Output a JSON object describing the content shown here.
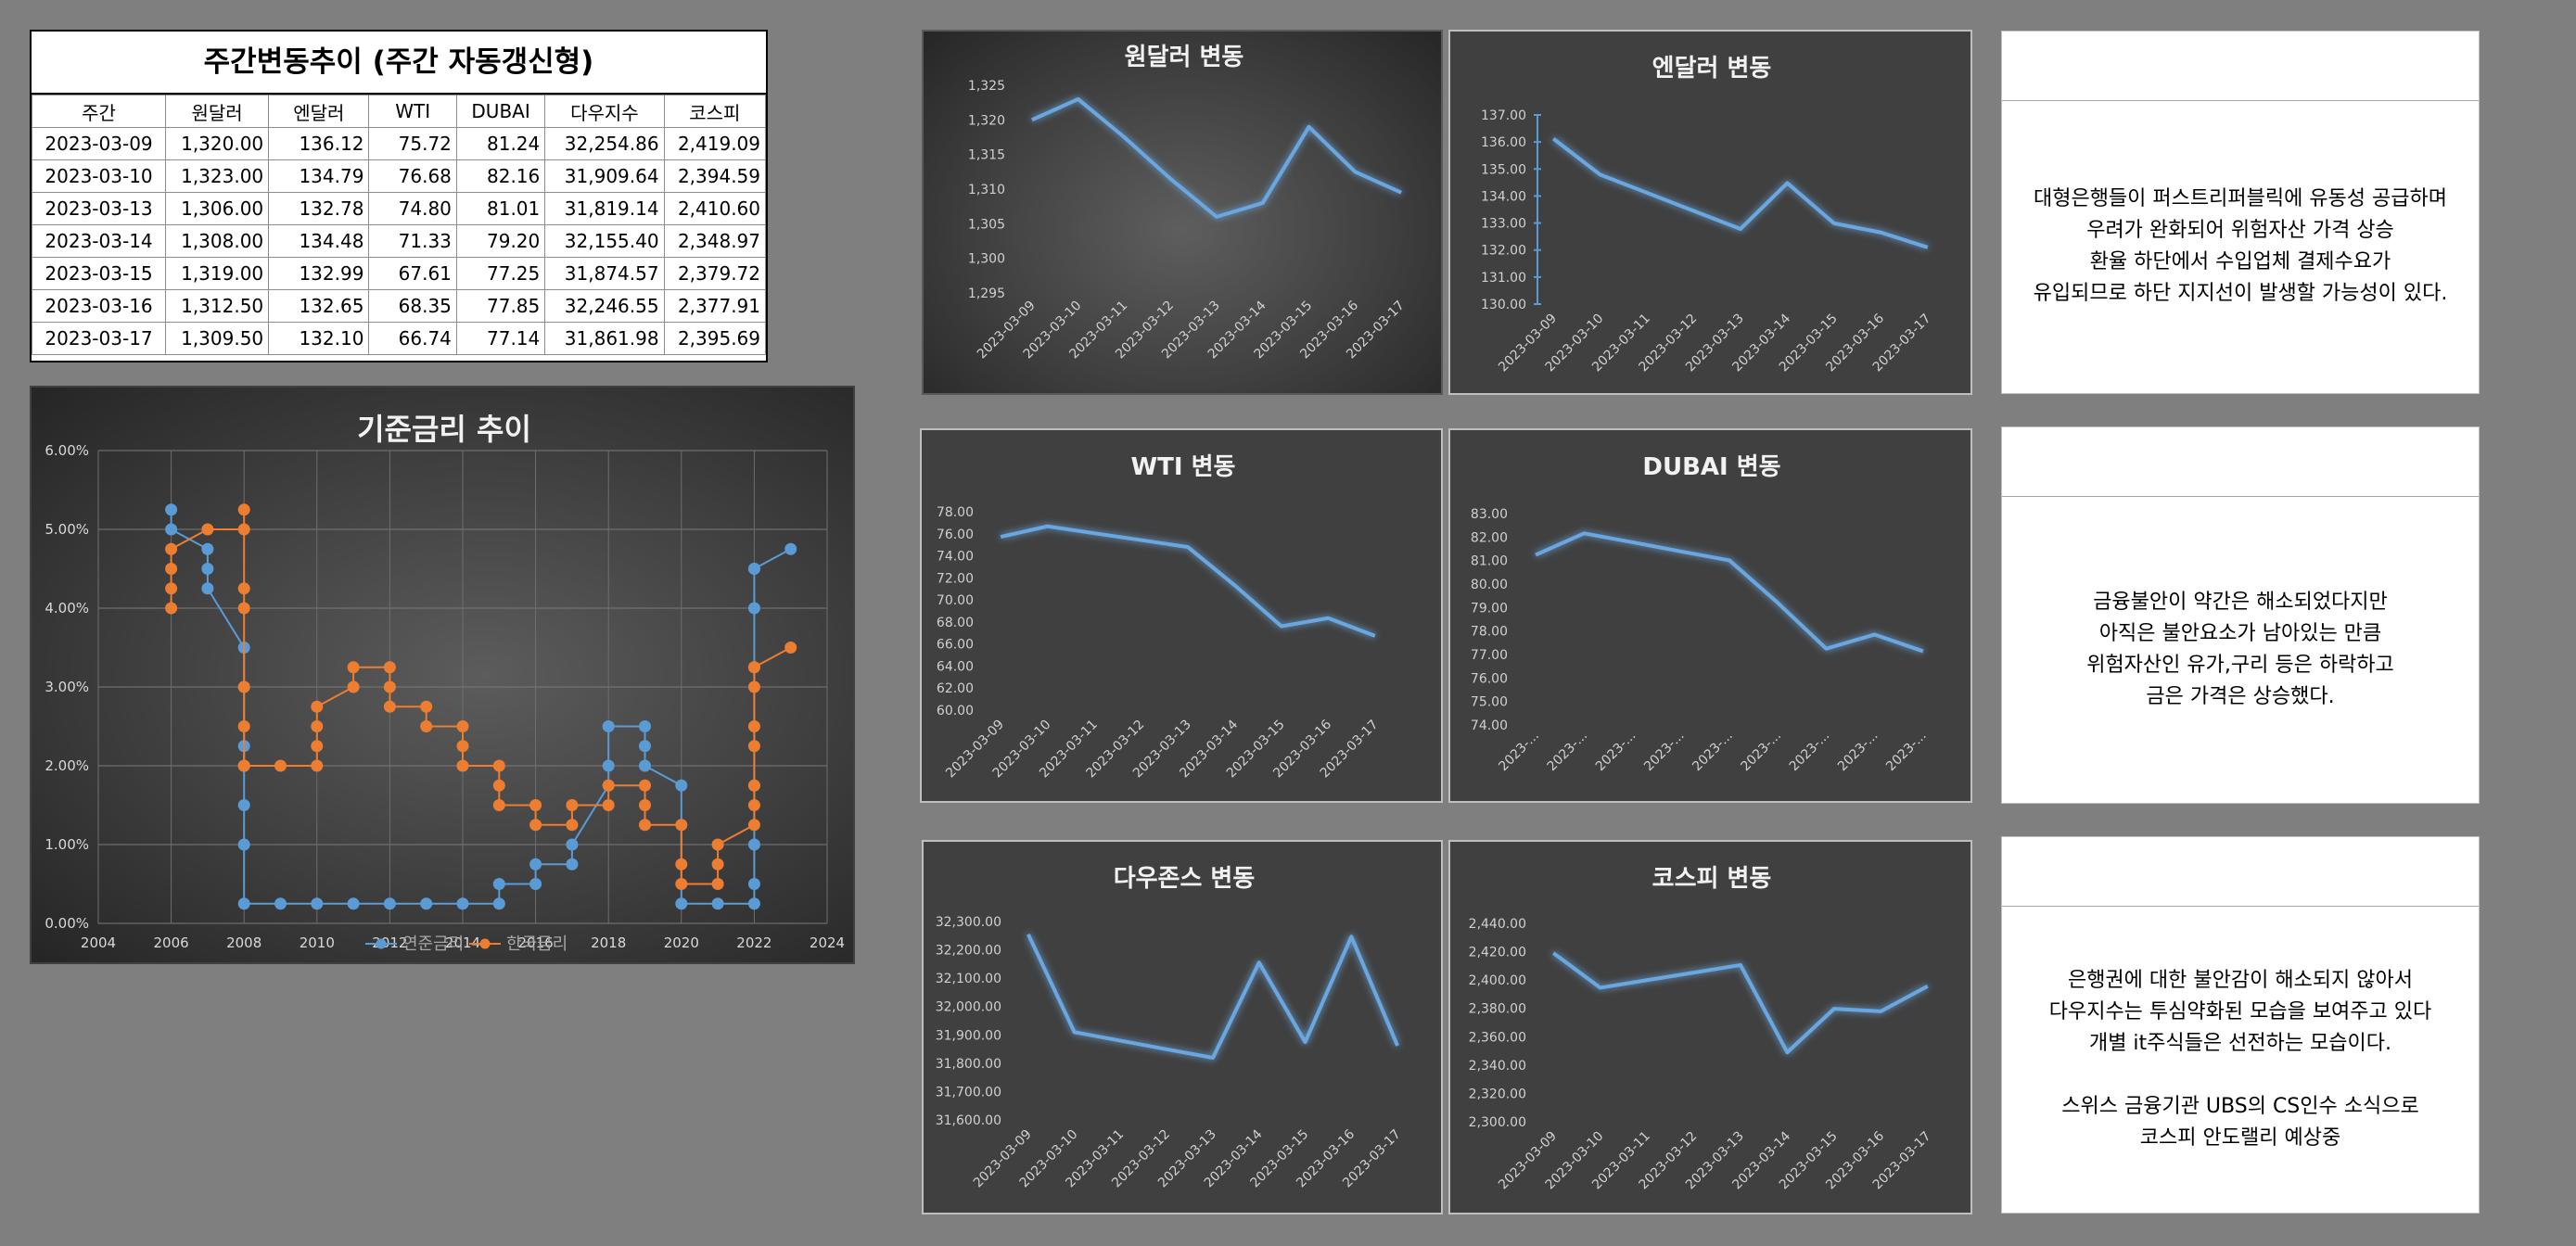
{
  "table": {
    "title": "주간변동추이 (주간 자동갱신형)",
    "headers": [
      "주간",
      "원달러",
      "엔달러",
      "WTI",
      "DUBAI",
      "다우지수",
      "코스피"
    ],
    "rows": [
      [
        "2023-03-09",
        "1,320.00",
        "136.12",
        "75.72",
        "81.24",
        "32,254.86",
        "2,419.09"
      ],
      [
        "2023-03-10",
        "1,323.00",
        "134.79",
        "76.68",
        "82.16",
        "31,909.64",
        "2,394.59"
      ],
      [
        "2023-03-13",
        "1,306.00",
        "132.78",
        "74.80",
        "81.01",
        "31,819.14",
        "2,410.60"
      ],
      [
        "2023-03-14",
        "1,308.00",
        "134.48",
        "71.33",
        "79.20",
        "32,155.40",
        "2,348.97"
      ],
      [
        "2023-03-15",
        "1,319.00",
        "132.99",
        "67.61",
        "77.25",
        "31,874.57",
        "2,379.72"
      ],
      [
        "2023-03-16",
        "1,312.50",
        "132.65",
        "68.35",
        "77.85",
        "32,246.55",
        "2,377.91"
      ],
      [
        "2023-03-17",
        "1,309.50",
        "132.10",
        "66.74",
        "77.14",
        "31,861.98",
        "2,395.69"
      ]
    ]
  },
  "chart_data": [
    {
      "type": "line",
      "title": "기준금리 추이",
      "xlim": [
        2004,
        2024
      ],
      "ylim": [
        0,
        6
      ],
      "x_ticks": [
        "2004",
        "2006",
        "2008",
        "2010",
        "2012",
        "2014",
        "2016",
        "2018",
        "2020",
        "2022",
        "2024"
      ],
      "y_ticks": [
        "0.00%",
        "1.00%",
        "2.00%",
        "3.00%",
        "4.00%",
        "5.00%",
        "6.00%"
      ],
      "grid": true,
      "legend": "bottom",
      "series": [
        {
          "name": "연준금리",
          "color": "#5b9bd5",
          "x": [
            2006,
            2006,
            2007,
            2007,
            2007,
            2008,
            2008,
            2008,
            2008,
            2008,
            2008,
            2008,
            2009,
            2010,
            2011,
            2012,
            2013,
            2014,
            2015,
            2015,
            2016,
            2016,
            2017,
            2017,
            2018,
            2018,
            2018,
            2019,
            2019,
            2019,
            2020,
            2020,
            2021,
            2022,
            2022,
            2022,
            2022,
            2022,
            2022,
            2022,
            2023
          ],
          "y": [
            5.25,
            5.0,
            4.75,
            4.5,
            4.25,
            3.5,
            3.0,
            2.25,
            2.0,
            1.5,
            1.0,
            0.25,
            0.25,
            0.25,
            0.25,
            0.25,
            0.25,
            0.25,
            0.25,
            0.5,
            0.5,
            0.75,
            0.75,
            1.0,
            1.75,
            2.0,
            2.5,
            2.5,
            2.25,
            2.0,
            1.75,
            0.25,
            0.25,
            0.25,
            0.5,
            1.0,
            1.75,
            4.0,
            4.5,
            4.5,
            4.75
          ]
        },
        {
          "name": "한국금리",
          "color": "#ed7d31",
          "x": [
            2006,
            2006,
            2006,
            2006,
            2007,
            2008,
            2008,
            2008,
            2008,
            2008,
            2008,
            2008,
            2008,
            2009,
            2010,
            2010,
            2010,
            2010,
            2011,
            2011,
            2012,
            2012,
            2012,
            2013,
            2013,
            2014,
            2014,
            2014,
            2015,
            2015,
            2015,
            2016,
            2016,
            2017,
            2017,
            2018,
            2018,
            2019,
            2019,
            2019,
            2020,
            2020,
            2020,
            2021,
            2021,
            2021,
            2022,
            2022,
            2022,
            2022,
            2022,
            2022,
            2022,
            2022,
            2023
          ],
          "y": [
            4.0,
            4.25,
            4.5,
            4.75,
            5.0,
            5.0,
            5.25,
            4.25,
            4.0,
            3.0,
            2.5,
            2.0,
            2.0,
            2.0,
            2.0,
            2.25,
            2.5,
            2.75,
            3.0,
            3.25,
            3.25,
            3.0,
            2.75,
            2.75,
            2.5,
            2.5,
            2.25,
            2.0,
            2.0,
            1.75,
            1.5,
            1.5,
            1.25,
            1.25,
            1.5,
            1.5,
            1.75,
            1.75,
            1.5,
            1.25,
            1.25,
            0.75,
            0.5,
            0.5,
            0.75,
            1.0,
            1.25,
            1.5,
            1.75,
            2.25,
            2.5,
            3.0,
            3.25,
            3.25,
            3.5
          ]
        }
      ]
    },
    {
      "type": "line",
      "title": "원달러 변동",
      "categories": [
        "2023-03-09",
        "2023-03-10",
        "2023-03-11",
        "2023-03-12",
        "2023-03-13",
        "2023-03-14",
        "2023-03-15",
        "2023-03-16",
        "2023-03-17"
      ],
      "values": [
        1320,
        1323,
        1317.5,
        1311.5,
        1306,
        1308,
        1319,
        1312.5,
        1309.5
      ],
      "ylim": [
        1295,
        1325
      ],
      "step": 5,
      "decimals": 0
    },
    {
      "type": "line",
      "title": "엔달러 변동",
      "categories": [
        "2023-03-09",
        "2023-03-10",
        "2023-03-11",
        "2023-03-12",
        "2023-03-13",
        "2023-03-14",
        "2023-03-15",
        "2023-03-16",
        "2023-03-17"
      ],
      "values": [
        136.12,
        134.79,
        134.12,
        133.45,
        132.78,
        134.48,
        132.99,
        132.65,
        132.1
      ],
      "ylim": [
        130,
        137
      ],
      "step": 1,
      "decimals": 2
    },
    {
      "type": "line",
      "title": "WTI 변동",
      "categories": [
        "2023-03-09",
        "2023-03-10",
        "2023-03-11",
        "2023-03-12",
        "2023-03-13",
        "2023-03-14",
        "2023-03-15",
        "2023-03-16",
        "2023-03-17"
      ],
      "values": [
        75.72,
        76.68,
        76.05,
        75.43,
        74.8,
        71.33,
        67.61,
        68.35,
        66.74
      ],
      "ylim": [
        60,
        78
      ],
      "step": 2,
      "decimals": 2
    },
    {
      "type": "line",
      "title": "DUBAI 변동",
      "categories": [
        "2023-...",
        "2023-...",
        "2023-...",
        "2023-...",
        "2023-...",
        "2023-...",
        "2023-...",
        "2023-...",
        "2023-..."
      ],
      "values": [
        81.24,
        82.16,
        81.78,
        81.39,
        81.01,
        79.2,
        77.25,
        77.85,
        77.14
      ],
      "ylim": [
        74,
        83
      ],
      "step": 1,
      "decimals": 2
    },
    {
      "type": "line",
      "title": "다우존스 변동",
      "categories": [
        "2023-03-09",
        "2023-03-10",
        "2023-03-11",
        "2023-03-12",
        "2023-03-13",
        "2023-03-14",
        "2023-03-15",
        "2023-03-16",
        "2023-03-17"
      ],
      "values": [
        32254.86,
        31909.64,
        31879.47,
        31849.31,
        31819.14,
        32155.4,
        31874.57,
        32246.55,
        31861.98
      ],
      "ylim": [
        31600,
        32300
      ],
      "step": 100,
      "decimals": 2
    },
    {
      "type": "line",
      "title": "코스피 변동",
      "categories": [
        "2023-03-09",
        "2023-03-10",
        "2023-03-11",
        "2023-03-12",
        "2023-03-13",
        "2023-03-14",
        "2023-03-15",
        "2023-03-16",
        "2023-03-17"
      ],
      "values": [
        2419.09,
        2394.59,
        2399.93,
        2405.26,
        2410.6,
        2348.97,
        2379.72,
        2377.91,
        2395.69
      ],
      "ylim": [
        2300,
        2440
      ],
      "step": 20,
      "decimals": 2
    }
  ],
  "notes": [
    {
      "lines": [
        "대형은행들이 퍼스트리퍼블릭에 유동성 공급하며",
        "우려가 완화되어 위험자산 가격 상승",
        "환율 하단에서 수입업체 결제수요가",
        "유입되므로 하단 지지선이 발생할 가능성이 있다."
      ]
    },
    {
      "lines": [
        "금융불안이 약간은 해소되었다지만",
        "아직은 불안요소가 남아있는 만큼",
        "위험자산인 유가,구리 등은 하락하고",
        "금은 가격은 상승했다."
      ]
    },
    {
      "lines": [
        "은행권에 대한 불안감이 해소되지 않아서",
        "다우지수는 투심약화된 모습을 보여주고 있다",
        "개별 it주식들은 선전하는 모습이다.",
        "",
        "스위스 금융기관 UBS의 CS인수 소식으로",
        "코스피 안도랠리 예상중"
      ]
    }
  ]
}
